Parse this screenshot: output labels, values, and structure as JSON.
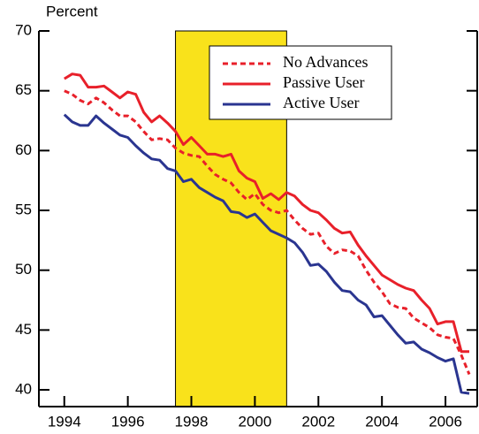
{
  "chart_data": {
    "type": "line",
    "y_axis_label": "Percent",
    "x": [
      1994,
      1994.25,
      1994.5,
      1994.75,
      1995,
      1995.25,
      1995.5,
      1995.75,
      1996,
      1996.25,
      1996.5,
      1996.75,
      1997,
      1997.25,
      1997.5,
      1997.75,
      1998,
      1998.25,
      1998.5,
      1998.75,
      1999,
      1999.25,
      1999.5,
      1999.75,
      2000,
      2000.25,
      2000.5,
      2000.75,
      2001,
      2001.25,
      2001.5,
      2001.75,
      2002,
      2002.25,
      2002.5,
      2002.75,
      2003,
      2003.25,
      2003.5,
      2003.75,
      2004,
      2004.25,
      2004.5,
      2004.75,
      2005,
      2005.25,
      2005.5,
      2005.75,
      2006,
      2006.25,
      2006.5,
      2006.75
    ],
    "series": [
      {
        "name": "No Advances",
        "color": "#e8202a",
        "dashed": true,
        "values": [
          65.0,
          64.7,
          64.2,
          63.9,
          64.4,
          64.0,
          63.4,
          62.9,
          62.9,
          62.4,
          61.6,
          60.9,
          61.0,
          60.9,
          60.2,
          59.8,
          59.6,
          59.5,
          58.7,
          58.0,
          57.6,
          57.3,
          56.5,
          55.9,
          56.4,
          55.5,
          55.0,
          54.8,
          55.0,
          54.2,
          53.5,
          53.0,
          53.1,
          52.0,
          51.4,
          51.7,
          51.6,
          51.2,
          50.0,
          49.0,
          48.2,
          47.2,
          46.9,
          46.8,
          46.0,
          45.6,
          45.2,
          44.6,
          44.4,
          44.3,
          42.9,
          41.3
        ]
      },
      {
        "name": "Passive User",
        "color": "#e8202a",
        "dashed": false,
        "values": [
          66.0,
          66.4,
          66.3,
          65.3,
          65.3,
          65.4,
          64.9,
          64.4,
          64.9,
          64.7,
          63.2,
          62.4,
          62.9,
          62.3,
          61.6,
          60.5,
          61.1,
          60.4,
          59.7,
          59.7,
          59.5,
          59.7,
          58.3,
          57.7,
          57.4,
          56.0,
          56.4,
          55.9,
          56.5,
          56.2,
          55.5,
          55.0,
          54.8,
          54.2,
          53.5,
          53.1,
          53.2,
          52.1,
          51.2,
          50.4,
          49.6,
          49.2,
          48.8,
          48.5,
          48.3,
          47.5,
          46.8,
          45.5,
          45.7,
          45.7,
          43.2,
          43.2
        ]
      },
      {
        "name": "Active User",
        "color": "#2a3590",
        "dashed": false,
        "values": [
          63.0,
          62.4,
          62.1,
          62.1,
          62.9,
          62.3,
          61.8,
          61.3,
          61.1,
          60.4,
          59.8,
          59.3,
          59.2,
          58.5,
          58.3,
          57.4,
          57.6,
          56.9,
          56.5,
          56.1,
          55.8,
          54.9,
          54.8,
          54.4,
          54.7,
          54.0,
          53.3,
          53.0,
          52.7,
          52.3,
          51.5,
          50.4,
          50.5,
          49.9,
          49.0,
          48.3,
          48.2,
          47.5,
          47.1,
          46.1,
          46.2,
          45.4,
          44.6,
          43.9,
          44.0,
          43.4,
          43.1,
          42.7,
          42.4,
          42.6,
          39.8,
          39.7
        ]
      }
    ],
    "shaded_region": [
      1997.5,
      2001
    ],
    "shade_color": "#f9e21b",
    "xlim": [
      1993.2,
      2007
    ],
    "xticks": [
      1994,
      1996,
      1998,
      2000,
      2002,
      2004,
      2006
    ],
    "ylim": [
      38.6,
      70
    ],
    "yticks": [
      40,
      45,
      50,
      55,
      60,
      65,
      70
    ]
  }
}
